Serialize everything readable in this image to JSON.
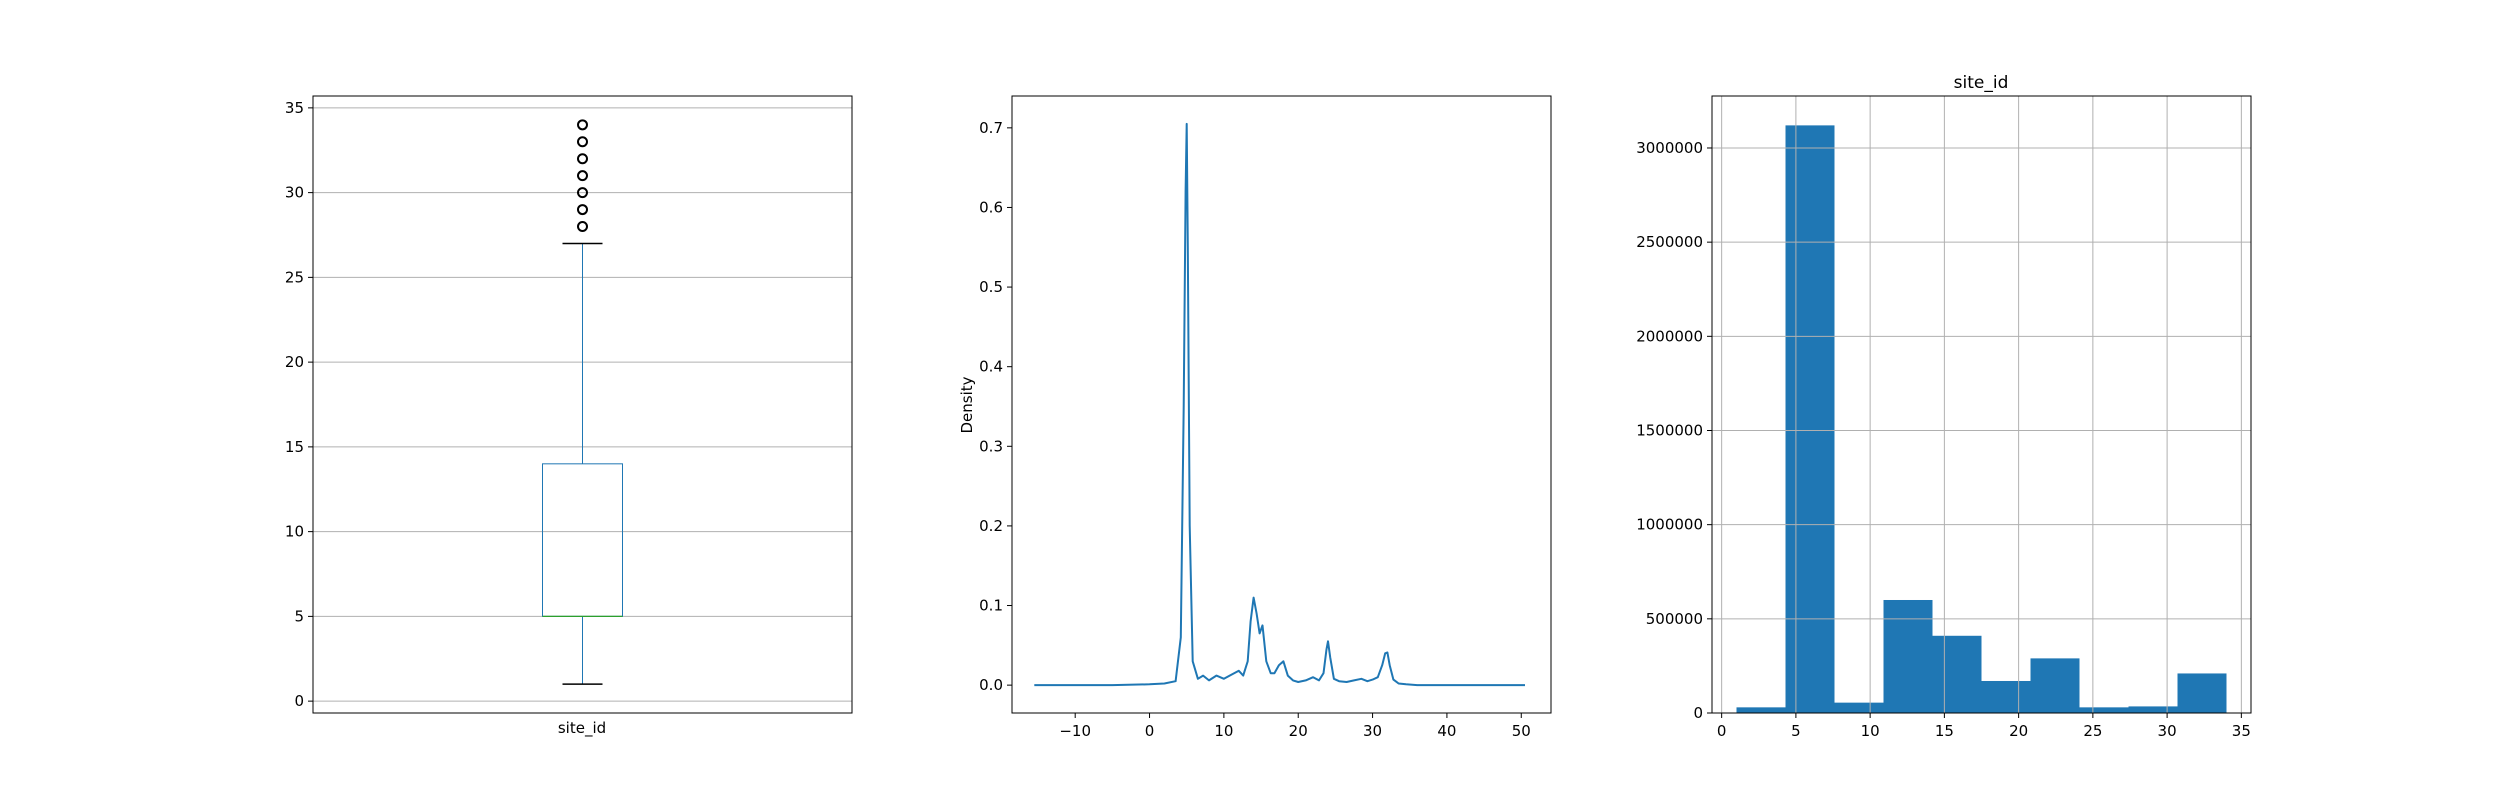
{
  "chart_data": [
    {
      "type": "box",
      "xlabel": "site_id",
      "yticks": [
        "0",
        "5",
        "10",
        "15",
        "20",
        "25",
        "30",
        "35"
      ],
      "ylim": [
        -0.7,
        35.7
      ],
      "grid": true,
      "box": {
        "whisker_low": 1,
        "q1": 5,
        "median": 5,
        "q3": 14,
        "whisker_high": 27
      },
      "outliers": [
        28,
        29,
        30,
        31,
        32,
        33,
        34
      ],
      "colors": {
        "box": "#1f77b4",
        "median": "#2ca02c",
        "whisker": "#1f77b4",
        "caps": "#000000"
      }
    },
    {
      "type": "line",
      "ylabel": "Density",
      "xticks": [
        "−10",
        "0",
        "10",
        "20",
        "30",
        "40",
        "50"
      ],
      "yticks": [
        "0.0",
        "0.1",
        "0.2",
        "0.3",
        "0.4",
        "0.5",
        "0.6",
        "0.7"
      ],
      "xlim": [
        -18.5,
        54
      ],
      "ylim": [
        -0.035,
        0.74
      ],
      "grid": false,
      "series": [
        {
          "color": "#1f77b4",
          "x": [
            -15.5,
            -5,
            0,
            2,
            3.5,
            4.2,
            4.6,
            4.85,
            5.0,
            5.15,
            5.4,
            5.8,
            6.5,
            7.2,
            8,
            9,
            10,
            11,
            12,
            12.6,
            13.2,
            13.6,
            14.0,
            14.4,
            14.8,
            15.2,
            15.7,
            16.3,
            16.8,
            17.4,
            18.0,
            18.6,
            19.3,
            20,
            21,
            22,
            22.8,
            23.4,
            23.8,
            24.0,
            24.3,
            24.8,
            25.5,
            26.5,
            27.5,
            28.5,
            29.3,
            30,
            30.7,
            31.3,
            31.7,
            32.0,
            32.3,
            32.8,
            33.5,
            34.5,
            36,
            40,
            45,
            50.5
          ],
          "y": [
            0,
            0,
            0.001,
            0.002,
            0.005,
            0.06,
            0.35,
            0.62,
            0.705,
            0.55,
            0.2,
            0.03,
            0.008,
            0.012,
            0.006,
            0.012,
            0.008,
            0.013,
            0.018,
            0.012,
            0.03,
            0.08,
            0.11,
            0.09,
            0.065,
            0.075,
            0.03,
            0.015,
            0.015,
            0.025,
            0.03,
            0.012,
            0.006,
            0.004,
            0.006,
            0.01,
            0.006,
            0.015,
            0.045,
            0.055,
            0.035,
            0.008,
            0.005,
            0.004,
            0.006,
            0.008,
            0.005,
            0.007,
            0.01,
            0.025,
            0.04,
            0.041,
            0.025,
            0.007,
            0.002,
            0.001,
            0,
            0,
            0,
            0
          ]
        }
      ]
    },
    {
      "type": "bar",
      "title": "site_id",
      "bin_edges": [
        1,
        4.3,
        7.6,
        10.9,
        14.2,
        17.5,
        20.8,
        24.1,
        27.4,
        30.7,
        34
      ],
      "values": [
        30000,
        3120000,
        55000,
        600000,
        410000,
        170000,
        290000,
        30000,
        35000,
        210000
      ],
      "xticks": [
        {
          "v": 0,
          "t": "0"
        },
        {
          "v": 5,
          "t": "5"
        },
        {
          "v": 10,
          "t": "10"
        },
        {
          "v": 15,
          "t": "15"
        },
        {
          "v": 20,
          "t": "20"
        },
        {
          "v": 25,
          "t": "25"
        },
        {
          "v": 30,
          "t": "30"
        },
        {
          "v": 35,
          "t": "35"
        }
      ],
      "yticks": [
        {
          "v": 0,
          "t": "0"
        },
        {
          "v": 500000,
          "t": "500000"
        },
        {
          "v": 1000000,
          "t": "1000000"
        },
        {
          "v": 1500000,
          "t": "1500000"
        },
        {
          "v": 2000000,
          "t": "2000000"
        },
        {
          "v": 2500000,
          "t": "2500000"
        },
        {
          "v": 3000000,
          "t": "3000000"
        }
      ],
      "xlim": [
        -0.65,
        35.65
      ],
      "ylim": [
        0,
        3276000
      ],
      "grid": true,
      "color": "#1f77b4"
    }
  ]
}
